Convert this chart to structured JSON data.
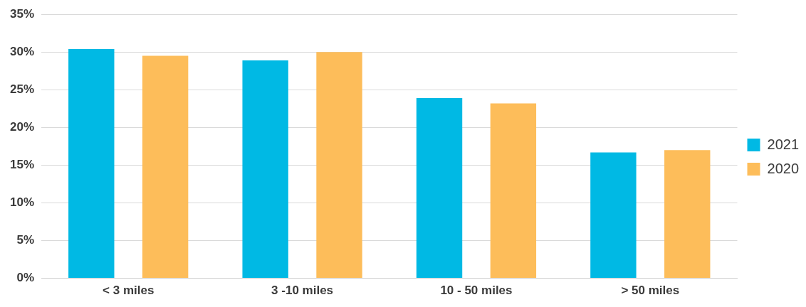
{
  "chart_data": {
    "type": "bar",
    "categories": [
      "< 3 miles",
      "3 -10 miles",
      "10 - 50 miles",
      "> 50 miles"
    ],
    "series": [
      {
        "name": "2021",
        "color": "#00b9e4",
        "values": [
          30.4,
          28.9,
          23.9,
          16.7
        ]
      },
      {
        "name": "2020",
        "color": "#fdbd5a",
        "values": [
          29.5,
          30.0,
          23.2,
          17.0
        ]
      }
    ],
    "ylim": [
      0,
      35
    ],
    "yticks": [
      {
        "value": 0,
        "label": "0%"
      },
      {
        "value": 5,
        "label": "5%"
      },
      {
        "value": 10,
        "label": "10%"
      },
      {
        "value": 15,
        "label": "15%"
      },
      {
        "value": 20,
        "label": "20%"
      },
      {
        "value": 25,
        "label": "25%"
      },
      {
        "value": 30,
        "label": "30%"
      },
      {
        "value": 35,
        "label": "35%"
      }
    ],
    "grid": "y",
    "legend": "right"
  }
}
